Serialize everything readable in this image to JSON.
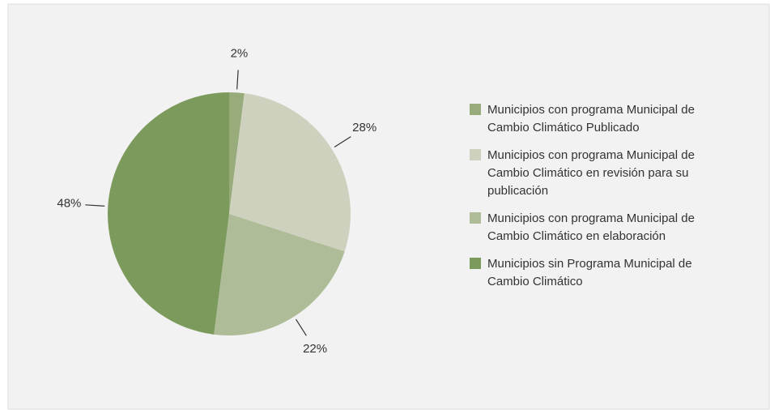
{
  "chart_data": {
    "type": "pie",
    "categories": [
      "Municipios con programa Municipal de Cambio Climático Publicado",
      "Municipios con programa Municipal de Cambio Climático en revisión para su publicación",
      "Municipios con programa Municipal de Cambio Climático en elaboración",
      "Municipios sin Programa Municipal de Cambio Climático"
    ],
    "values": [
      2,
      28,
      22,
      48
    ],
    "value_labels": [
      "2%",
      "28%",
      "22%",
      "48%"
    ],
    "colors": [
      "#97ab7b",
      "#cdd1be",
      "#aebd98",
      "#7b9a5b"
    ]
  }
}
